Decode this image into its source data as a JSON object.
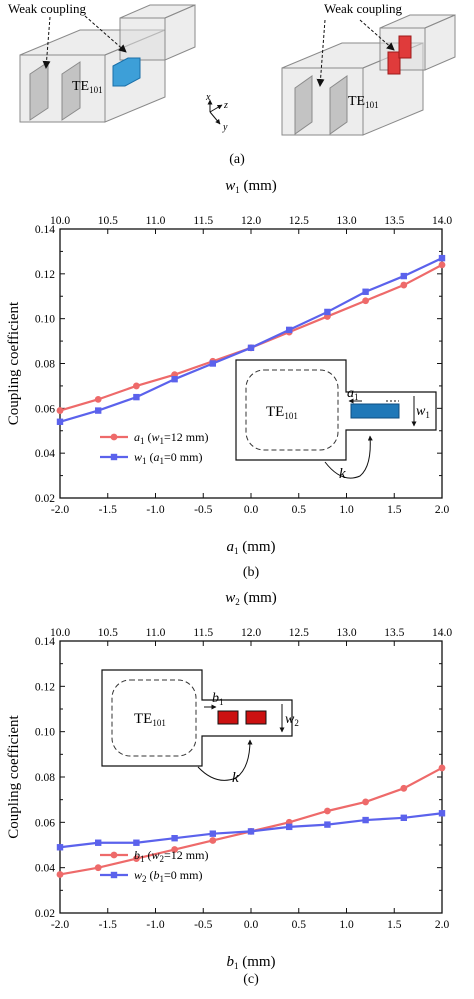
{
  "panel_a": {
    "caption": "(a)",
    "left_model": {
      "label_main": "TE",
      "label_sub": "101",
      "annotation": "Weak coupling",
      "probe_color": "#3d9fd8"
    },
    "right_model": {
      "label_main": "TE",
      "label_sub": "101",
      "annotation": "Weak coupling",
      "probe_color": "#e03b3b"
    },
    "axes": {
      "x": "x",
      "y": "y",
      "z": "z"
    }
  },
  "inset_b": {
    "label_main": "TE",
    "label_sub": "101",
    "dim_gap_main": "a",
    "dim_gap_sub": "1",
    "dim_width_main": "w",
    "dim_width_sub": "1",
    "k": "k",
    "block_color": "#1f78b8"
  },
  "inset_c": {
    "label_main": "TE",
    "label_sub": "101",
    "dim_gap_main": "b",
    "dim_gap_sub": "1",
    "dim_width_main": "w",
    "dim_width_sub": "2",
    "k": "k",
    "block_color": "#cc1111"
  },
  "chart_data": [
    {
      "type": "line",
      "caption": "(b)",
      "top_axis": {
        "label_main": "w",
        "label_sub": "1",
        "label_unit": " (mm)",
        "ticks": [
          10.0,
          10.5,
          11.0,
          11.5,
          12.0,
          12.5,
          13.0,
          13.5,
          14.0
        ],
        "range": [
          10.0,
          14.0
        ]
      },
      "bottom_axis": {
        "label_main": "a",
        "label_sub": "1",
        "label_unit": " (mm)",
        "ticks": [
          -2.0,
          -1.5,
          -1.0,
          -0.5,
          0.0,
          0.5,
          1.0,
          1.5,
          2.0
        ],
        "range": [
          -2.0,
          2.0
        ]
      },
      "ylabel": "Coupling coefficient",
      "yticks": [
        0.02,
        0.04,
        0.06,
        0.08,
        0.1,
        0.12,
        0.14
      ],
      "ylim": [
        0.02,
        0.14
      ],
      "legend_position": "lower-left",
      "series": [
        {
          "name_main": "a",
          "name_sub": "1",
          "name_rest": " (w",
          "name_sub2": "1",
          "name_end": "=12 mm)",
          "axis": "bottom",
          "color": "#ee6a6a",
          "marker": "circle",
          "x": [
            -2.0,
            -1.6,
            -1.2,
            -0.8,
            -0.4,
            0.0,
            0.4,
            0.8,
            1.2,
            1.6,
            2.0
          ],
          "y": [
            0.059,
            0.064,
            0.07,
            0.075,
            0.081,
            0.087,
            0.094,
            0.101,
            0.108,
            0.115,
            0.124
          ]
        },
        {
          "name_main": "w",
          "name_sub": "1",
          "name_rest": " (a",
          "name_sub2": "1",
          "name_end": "=0 mm)",
          "axis": "top",
          "color": "#5b62ec",
          "marker": "square",
          "x": [
            10.0,
            10.4,
            10.8,
            11.2,
            11.6,
            12.0,
            12.4,
            12.8,
            13.2,
            13.6,
            14.0
          ],
          "y": [
            0.054,
            0.059,
            0.065,
            0.073,
            0.08,
            0.087,
            0.095,
            0.103,
            0.112,
            0.119,
            0.127
          ]
        }
      ]
    },
    {
      "type": "line",
      "caption": "(c)",
      "top_axis": {
        "label_main": "w",
        "label_sub": "2",
        "label_unit": " (mm)",
        "ticks": [
          10.0,
          10.5,
          11.0,
          11.5,
          12.0,
          12.5,
          13.0,
          13.5,
          14.0
        ],
        "range": [
          10.0,
          14.0
        ]
      },
      "bottom_axis": {
        "label_main": "b",
        "label_sub": "1",
        "label_unit": " (mm)",
        "ticks": [
          -2.0,
          -1.5,
          -1.0,
          -0.5,
          0.0,
          0.5,
          1.0,
          1.5,
          2.0
        ],
        "range": [
          -2.0,
          2.0
        ]
      },
      "ylabel": "Coupling coefficient",
      "yticks": [
        0.02,
        0.04,
        0.06,
        0.08,
        0.1,
        0.12,
        0.14
      ],
      "ylim": [
        0.02,
        0.14
      ],
      "legend_position": "lower-left",
      "series": [
        {
          "name_main": "b",
          "name_sub": "1",
          "name_rest": " (w",
          "name_sub2": "2",
          "name_end": "=12 mm)",
          "axis": "bottom",
          "color": "#ee6a6a",
          "marker": "circle",
          "x": [
            -2.0,
            -1.6,
            -1.2,
            -0.8,
            -0.4,
            0.0,
            0.4,
            0.8,
            1.2,
            1.6,
            2.0
          ],
          "y": [
            0.037,
            0.04,
            0.044,
            0.048,
            0.052,
            0.056,
            0.06,
            0.065,
            0.069,
            0.075,
            0.084
          ]
        },
        {
          "name_main": "w",
          "name_sub": "2",
          "name_rest": " (b",
          "name_sub2": "1",
          "name_end": "=0 mm)",
          "axis": "top",
          "color": "#5b62ec",
          "marker": "square",
          "x": [
            10.0,
            10.4,
            10.8,
            11.2,
            11.6,
            12.0,
            12.4,
            12.8,
            13.2,
            13.6,
            14.0
          ],
          "y": [
            0.049,
            0.051,
            0.051,
            0.053,
            0.055,
            0.056,
            0.058,
            0.059,
            0.061,
            0.062,
            0.064
          ]
        }
      ]
    }
  ]
}
